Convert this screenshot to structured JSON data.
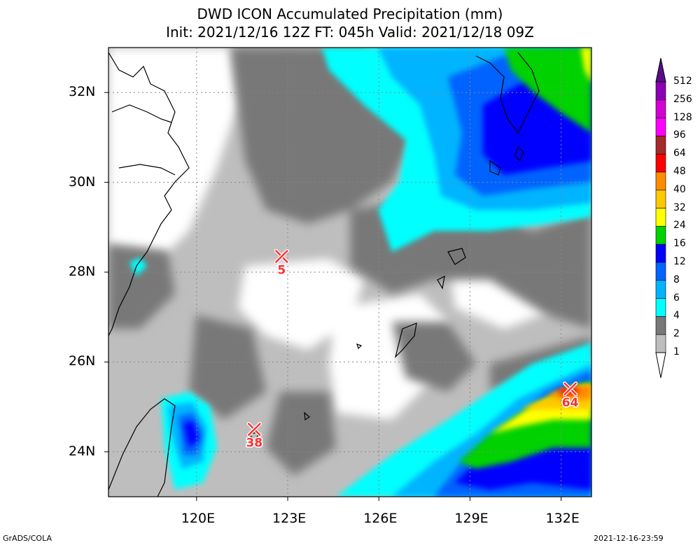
{
  "header": {
    "title": "DWD ICON Accumulated Precipitation (mm)",
    "subtitle": "Init: 2021/12/16 12Z  FT: 045h  Valid: 2021/12/18 09Z"
  },
  "axes": {
    "lat_labels": [
      "32N",
      "30N",
      "28N",
      "26N",
      "24N"
    ],
    "lon_labels": [
      "120E",
      "123E",
      "126E",
      "129E",
      "132E"
    ],
    "lat_values": [
      32,
      30,
      28,
      26,
      24
    ],
    "lon_values": [
      120,
      123,
      126,
      129,
      132
    ]
  },
  "colorbar": {
    "labels": [
      "512",
      "256",
      "128",
      "96",
      "64",
      "48",
      "40",
      "32",
      "24",
      "16",
      "12",
      "8",
      "6",
      "4",
      "2",
      "1"
    ],
    "colors": [
      "#5a0c8c",
      "#8c00b4",
      "#d200d2",
      "#ff00ff",
      "#a52a2a",
      "#ff0000",
      "#ff8c00",
      "#ffc800",
      "#ffff00",
      "#00d200",
      "#0000ff",
      "#0064ff",
      "#00b4ff",
      "#00ffff",
      "#787878",
      "#bebebe"
    ]
  },
  "markers": [
    {
      "label": "5",
      "lon": 122.8,
      "lat": 28.35
    },
    {
      "label": "38",
      "lon": 121.9,
      "lat": 24.5
    },
    {
      "label": "64",
      "lon": 132.3,
      "lat": 25.4
    }
  ],
  "footer": {
    "left": "GrADS/COLA",
    "right": "2021-12-16-23:59"
  }
}
